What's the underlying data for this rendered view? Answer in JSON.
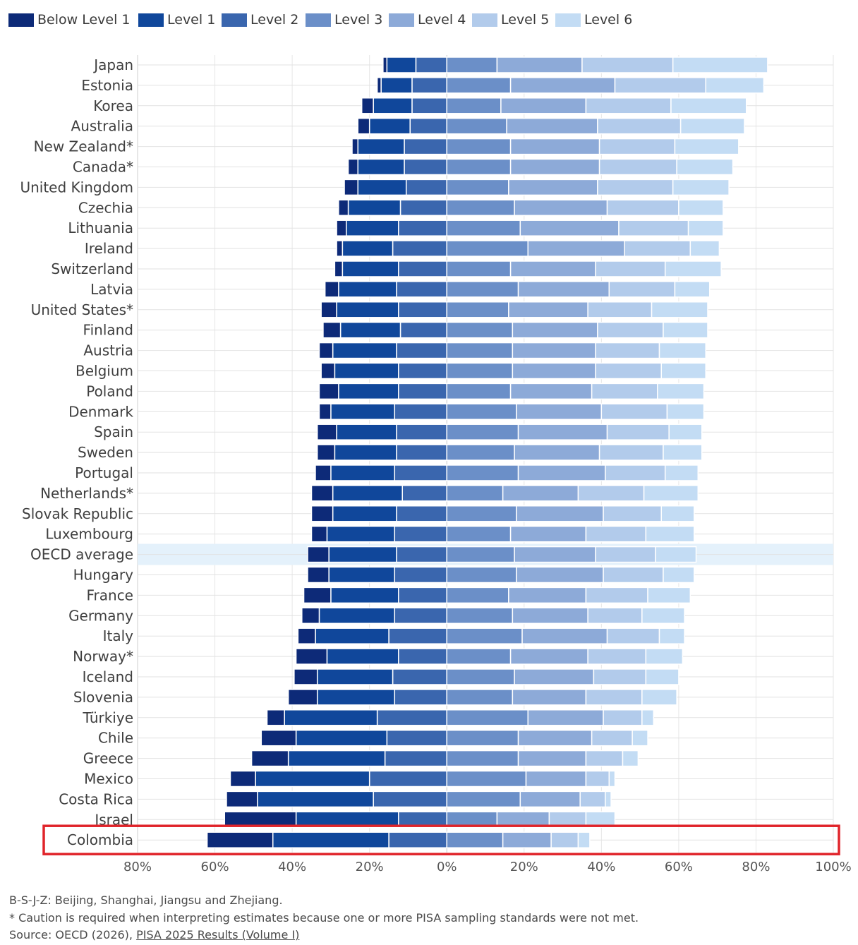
{
  "chart_data": {
    "type": "bar",
    "orientation": "horizontal-diverging",
    "title": "",
    "xlabel": "",
    "ylabel": "",
    "xlim": [
      -80,
      100
    ],
    "xticks": [
      -80,
      -60,
      -40,
      -20,
      0,
      20,
      40,
      60,
      80,
      100
    ],
    "xtick_labels": [
      "80%",
      "60%",
      "40%",
      "20%",
      "0%",
      "20%",
      "40%",
      "60%",
      "80%",
      "100%"
    ],
    "grid": true,
    "legend_position": "top-left",
    "highlight_category": "OECD average",
    "boxed_category": "Colombia",
    "categories": [
      "Japan",
      "Estonia",
      "Korea",
      "Australia",
      "New Zealand*",
      "Canada*",
      "United Kingdom",
      "Czechia",
      "Lithuania",
      "Ireland",
      "Switzerland",
      "Latvia",
      "United States*",
      "Finland",
      "Austria",
      "Belgium",
      "Poland",
      "Denmark",
      "Spain",
      "Sweden",
      "Portugal",
      "Netherlands*",
      "Slovak Republic",
      "Luxembourg",
      "OECD average",
      "Hungary",
      "France",
      "Germany",
      "Italy",
      "Norway*",
      "Iceland",
      "Slovenia",
      "Türkiye",
      "Chile",
      "Greece",
      "Mexico",
      "Costa Rica",
      "Israel",
      "Colombia"
    ],
    "series": [
      {
        "name": "Below Level 1",
        "color": "#0d2a78",
        "values": [
          1.0,
          1.0,
          3.0,
          3.0,
          1.5,
          2.5,
          3.5,
          2.5,
          2.5,
          1.5,
          2.0,
          3.5,
          4.0,
          4.5,
          3.5,
          3.5,
          5.0,
          3.0,
          5.0,
          4.5,
          4.0,
          5.5,
          5.5,
          4.0,
          5.5,
          5.5,
          7.0,
          4.5,
          4.5,
          8.0,
          6.0,
          7.5,
          4.5,
          9.0,
          9.5,
          6.5,
          8.0,
          18.5,
          17.0
        ]
      },
      {
        "name": "Level 1",
        "color": "#10479b",
        "values": [
          7.5,
          8.0,
          10.0,
          10.5,
          12.0,
          12.0,
          12.5,
          13.5,
          13.5,
          13.0,
          14.5,
          15.0,
          16.0,
          15.5,
          16.5,
          16.5,
          15.5,
          16.5,
          15.5,
          16.0,
          16.5,
          18.0,
          16.5,
          17.5,
          17.5,
          17.0,
          17.5,
          19.5,
          19.0,
          18.5,
          19.5,
          20.0,
          24.0,
          23.5,
          25.0,
          29.5,
          30.0,
          26.5,
          30.0
        ]
      },
      {
        "name": "Level 2",
        "color": "#3a66ae",
        "values": [
          8.0,
          9.0,
          9.0,
          9.5,
          11.0,
          11.0,
          10.5,
          12.0,
          12.5,
          14.0,
          12.5,
          13.0,
          12.5,
          12.0,
          13.0,
          12.5,
          12.5,
          13.5,
          13.0,
          13.0,
          13.5,
          11.5,
          13.0,
          13.5,
          13.0,
          13.5,
          12.5,
          13.5,
          15.0,
          12.5,
          14.0,
          13.5,
          18.0,
          15.5,
          16.0,
          20.0,
          19.0,
          12.5,
          15.0
        ]
      },
      {
        "name": "Level 3",
        "color": "#6b8fc8",
        "values": [
          13.0,
          16.5,
          14.0,
          15.5,
          16.5,
          16.5,
          16.0,
          17.5,
          19.0,
          21.0,
          16.5,
          18.5,
          16.0,
          17.0,
          17.0,
          17.0,
          16.5,
          18.0,
          18.5,
          17.5,
          18.5,
          14.5,
          18.0,
          16.5,
          17.5,
          18.0,
          16.0,
          17.0,
          19.5,
          16.5,
          17.5,
          17.0,
          21.0,
          18.5,
          18.5,
          20.5,
          19.0,
          13.0,
          14.5
        ]
      },
      {
        "name": "Level 4",
        "color": "#8daad8",
        "values": [
          22.0,
          27.0,
          22.0,
          23.5,
          23.0,
          23.0,
          23.0,
          24.0,
          25.5,
          25.0,
          22.0,
          23.5,
          20.5,
          22.0,
          21.5,
          21.5,
          21.0,
          22.0,
          23.0,
          22.0,
          22.5,
          19.5,
          22.5,
          19.5,
          21.0,
          22.5,
          20.0,
          19.5,
          22.0,
          20.0,
          20.5,
          19.0,
          19.5,
          19.0,
          17.5,
          15.5,
          15.5,
          13.5,
          12.5
        ]
      },
      {
        "name": "Level 5",
        "color": "#b2cbeb",
        "values": [
          23.5,
          23.5,
          22.0,
          21.5,
          19.5,
          20.0,
          19.5,
          18.5,
          18.0,
          17.0,
          18.0,
          17.0,
          16.5,
          17.0,
          16.5,
          17.0,
          17.0,
          17.0,
          16.0,
          16.5,
          15.5,
          17.0,
          15.0,
          15.5,
          15.5,
          15.5,
          16.0,
          14.0,
          13.5,
          15.0,
          13.5,
          14.5,
          10.0,
          10.5,
          9.5,
          6.0,
          6.5,
          9.5,
          7.0
        ]
      },
      {
        "name": "Level 6",
        "color": "#c3dcf4",
        "values": [
          24.5,
          15.0,
          19.5,
          16.5,
          16.5,
          14.5,
          14.5,
          11.5,
          9.0,
          7.5,
          14.5,
          9.0,
          14.5,
          11.5,
          12.0,
          11.5,
          12.0,
          9.5,
          8.5,
          10.0,
          8.5,
          14.0,
          8.5,
          12.5,
          10.5,
          8.0,
          11.0,
          11.0,
          6.5,
          9.5,
          8.5,
          9.0,
          3.0,
          4.0,
          4.0,
          1.5,
          1.5,
          7.5,
          3.0
        ]
      }
    ]
  },
  "footnotes": {
    "note1": "B-S-J-Z: Beijing, Shanghai, Jiangsu and Zhejiang.",
    "note2": "* Caution is required when interpreting estimates because one or more PISA sampling standards were not met.",
    "source_prefix": "Source: OECD (2026), ",
    "source_link": "PISA 2025 Results (Volume I)"
  }
}
